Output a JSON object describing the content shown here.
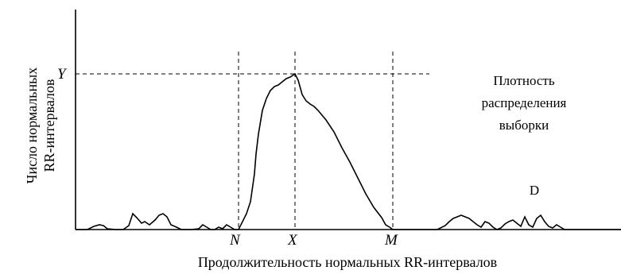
{
  "chart_data": {
    "type": "line",
    "title": "",
    "xlabel": "Продолжительность нормальных RR-интервалов",
    "ylabel_lines": [
      "Число нормальных",
      "RR-интервалов"
    ],
    "x_markers": [
      {
        "label": "N",
        "x": 300
      },
      {
        "label": "X",
        "x": 371
      },
      {
        "label": "M",
        "x": 494
      }
    ],
    "y_markers": [
      {
        "label": "Y",
        "value": 196
      }
    ],
    "xlim": [
      95,
      781
    ],
    "ylim": [
      0,
      285
    ],
    "series": [
      {
        "x": [
          95,
          110,
          118,
          125,
          130,
          135,
          145,
          155,
          162,
          167,
          172,
          178,
          182,
          188,
          195,
          200,
          205,
          210,
          215,
          222,
          228,
          240,
          250,
          255,
          260,
          265,
          270,
          275,
          280,
          285,
          290,
          295,
          300,
          305,
          310,
          315,
          320,
          322,
          325,
          330,
          335,
          340,
          345,
          350,
          355,
          360,
          365,
          371,
          375,
          380,
          385,
          390,
          395,
          400,
          410,
          420,
          430,
          440,
          450,
          460,
          470,
          480,
          485,
          490,
          494,
          500,
          520,
          540,
          550,
          560,
          565,
          570,
          575,
          580,
          585,
          590,
          595,
          600,
          605,
          610,
          615,
          620,
          625,
          630,
          635,
          640,
          645,
          650,
          655,
          660,
          665,
          670,
          675,
          680,
          685,
          690,
          695,
          700,
          705,
          710,
          720,
          740,
          781
        ],
        "y": [
          0,
          0,
          4,
          6,
          5,
          1,
          0,
          0,
          5,
          20,
          15,
          8,
          10,
          6,
          12,
          18,
          20,
          16,
          6,
          3,
          0,
          0,
          1,
          6,
          3,
          0,
          0,
          3,
          1,
          6,
          3,
          0,
          0,
          10,
          20,
          35,
          70,
          95,
          120,
          150,
          165,
          175,
          180,
          182,
          186,
          190,
          192,
          196,
          188,
          170,
          162,
          158,
          155,
          150,
          138,
          123,
          103,
          85,
          65,
          45,
          28,
          15,
          6,
          3,
          0,
          0,
          0,
          0,
          0,
          5,
          10,
          14,
          16,
          18,
          16,
          14,
          10,
          6,
          3,
          10,
          8,
          3,
          0,
          2,
          7,
          10,
          12,
          8,
          4,
          16,
          6,
          3,
          14,
          18,
          10,
          4,
          2,
          6,
          3,
          0,
          0,
          0,
          0
        ]
      }
    ],
    "annotations": [
      {
        "lines": [
          "Плотность",
          "распределения",
          "выборки"
        ]
      },
      {
        "text": "D"
      }
    ]
  }
}
